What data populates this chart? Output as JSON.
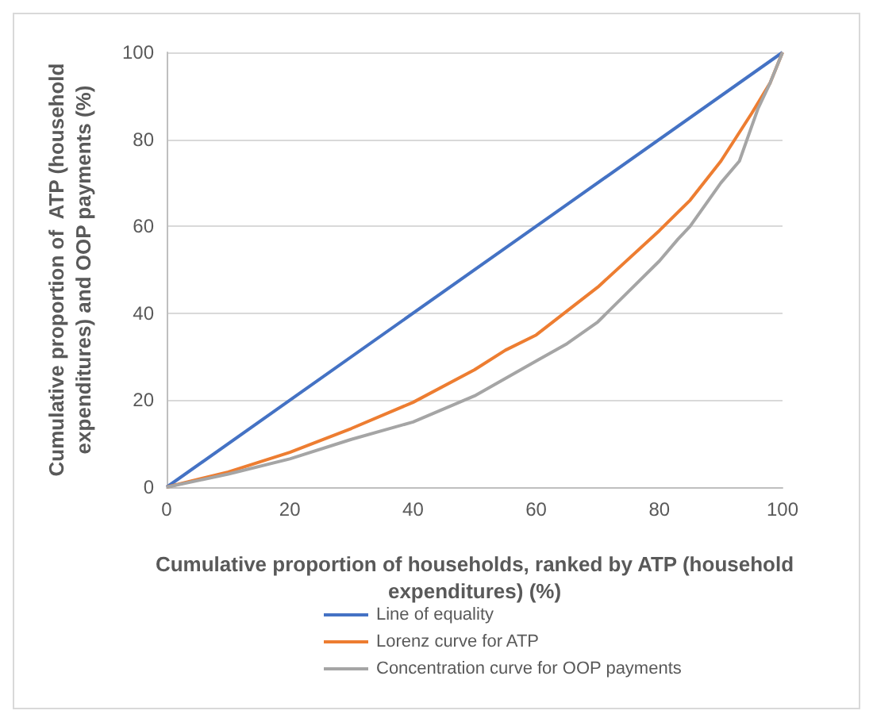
{
  "chart_data": {
    "type": "line",
    "xlabel": "Cumulative proportion of households, ranked by ATP (household expenditures) (%)",
    "ylabel": "Cumulative proportion of  ATP (household expenditures) and OOP payments (%)",
    "xlim": [
      0,
      100
    ],
    "xticks": [
      0,
      20,
      40,
      60,
      80,
      100
    ],
    "ylim": [
      0,
      100
    ],
    "yticks": [
      0,
      20,
      40,
      60,
      80,
      100
    ],
    "grid": "y",
    "legend": "bottom",
    "marker": "none",
    "line_style": "solid",
    "series": [
      {
        "name": "Line of equality",
        "color": "#4472c4",
        "x": [
          0,
          100
        ],
        "values": [
          0,
          100
        ]
      },
      {
        "name": "Lorenz curve for ATP",
        "color": "#ed7d31",
        "x": [
          0,
          10,
          20,
          30,
          40,
          50,
          55,
          60,
          70,
          80,
          85,
          90,
          95,
          98,
          100
        ],
        "values": [
          0,
          3.5,
          8,
          13.5,
          19.5,
          27,
          31.5,
          35,
          46,
          59,
          66,
          75,
          86,
          93,
          100
        ]
      },
      {
        "name": "Concentration curve for OOP payments",
        "color": "#a5a5a5",
        "x": [
          0,
          10,
          20,
          30,
          40,
          45,
          50,
          55,
          60,
          65,
          70,
          75,
          80,
          83,
          85,
          90,
          93,
          95,
          96,
          98,
          100
        ],
        "values": [
          0,
          3,
          6.5,
          11,
          15,
          18,
          21,
          25,
          29,
          33,
          38,
          45,
          52,
          57,
          60,
          70,
          75,
          83,
          87,
          93,
          100
        ]
      }
    ]
  }
}
